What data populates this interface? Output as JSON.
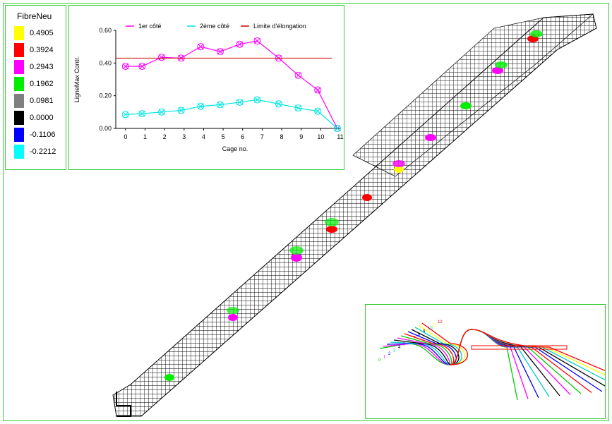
{
  "legend": {
    "title": "FibreNeu",
    "entries": [
      {
        "color": "#ffff00",
        "label": "0.4905"
      },
      {
        "color": "#ff0000",
        "label": "0.3924"
      },
      {
        "color": "#ff00ff",
        "label": "0.2943"
      },
      {
        "color": "#00ee00",
        "label": "0.1962"
      },
      {
        "color": "#808080",
        "label": "0.0981"
      },
      {
        "color": "#000000",
        "label": "0.0000"
      },
      {
        "color": "#0000ff",
        "label": "-0.1106"
      },
      {
        "color": "#00ffff",
        "label": "-0.2212"
      }
    ]
  },
  "chart_data": {
    "type": "line",
    "xlabel": "Cage no.",
    "ylabel": "LigneMax Contr.",
    "xlim": [
      -0.5,
      11
    ],
    "ylim": [
      0,
      0.6
    ],
    "xticks": [
      "0",
      "1",
      "2",
      "3",
      "4",
      "5",
      "6",
      "7",
      "8",
      "9",
      "10",
      "11"
    ],
    "yticks": [
      "0.00",
      "0.20",
      "0.40",
      "0.60"
    ],
    "series": [
      {
        "name": "1er côté",
        "color": "#ff00ff",
        "x": [
          0,
          0.85,
          1.85,
          2.85,
          3.85,
          4.85,
          5.85,
          6.75,
          7.85,
          8.85,
          9.85,
          10.85
        ],
        "y": [
          0.38,
          0.38,
          0.435,
          0.43,
          0.5,
          0.47,
          0.515,
          0.535,
          0.43,
          0.325,
          0.235,
          0.0
        ]
      },
      {
        "name": "2ème côté",
        "color": "#00e5e5",
        "x": [
          0,
          0.85,
          1.85,
          2.85,
          3.85,
          4.85,
          5.85,
          6.75,
          7.85,
          8.85,
          9.85,
          10.85
        ],
        "y": [
          0.085,
          0.09,
          0.1,
          0.11,
          0.135,
          0.145,
          0.16,
          0.175,
          0.15,
          0.125,
          0.105,
          0.0
        ]
      },
      {
        "name": "Limite d'élongation",
        "color": "#cc0000",
        "type": "hline",
        "y": 0.43
      }
    ]
  },
  "inset": {
    "labels": [
      "0",
      "1",
      "2",
      "3",
      "4",
      "5",
      "6",
      "7",
      "8",
      "9",
      "10",
      "11",
      "12"
    ]
  }
}
